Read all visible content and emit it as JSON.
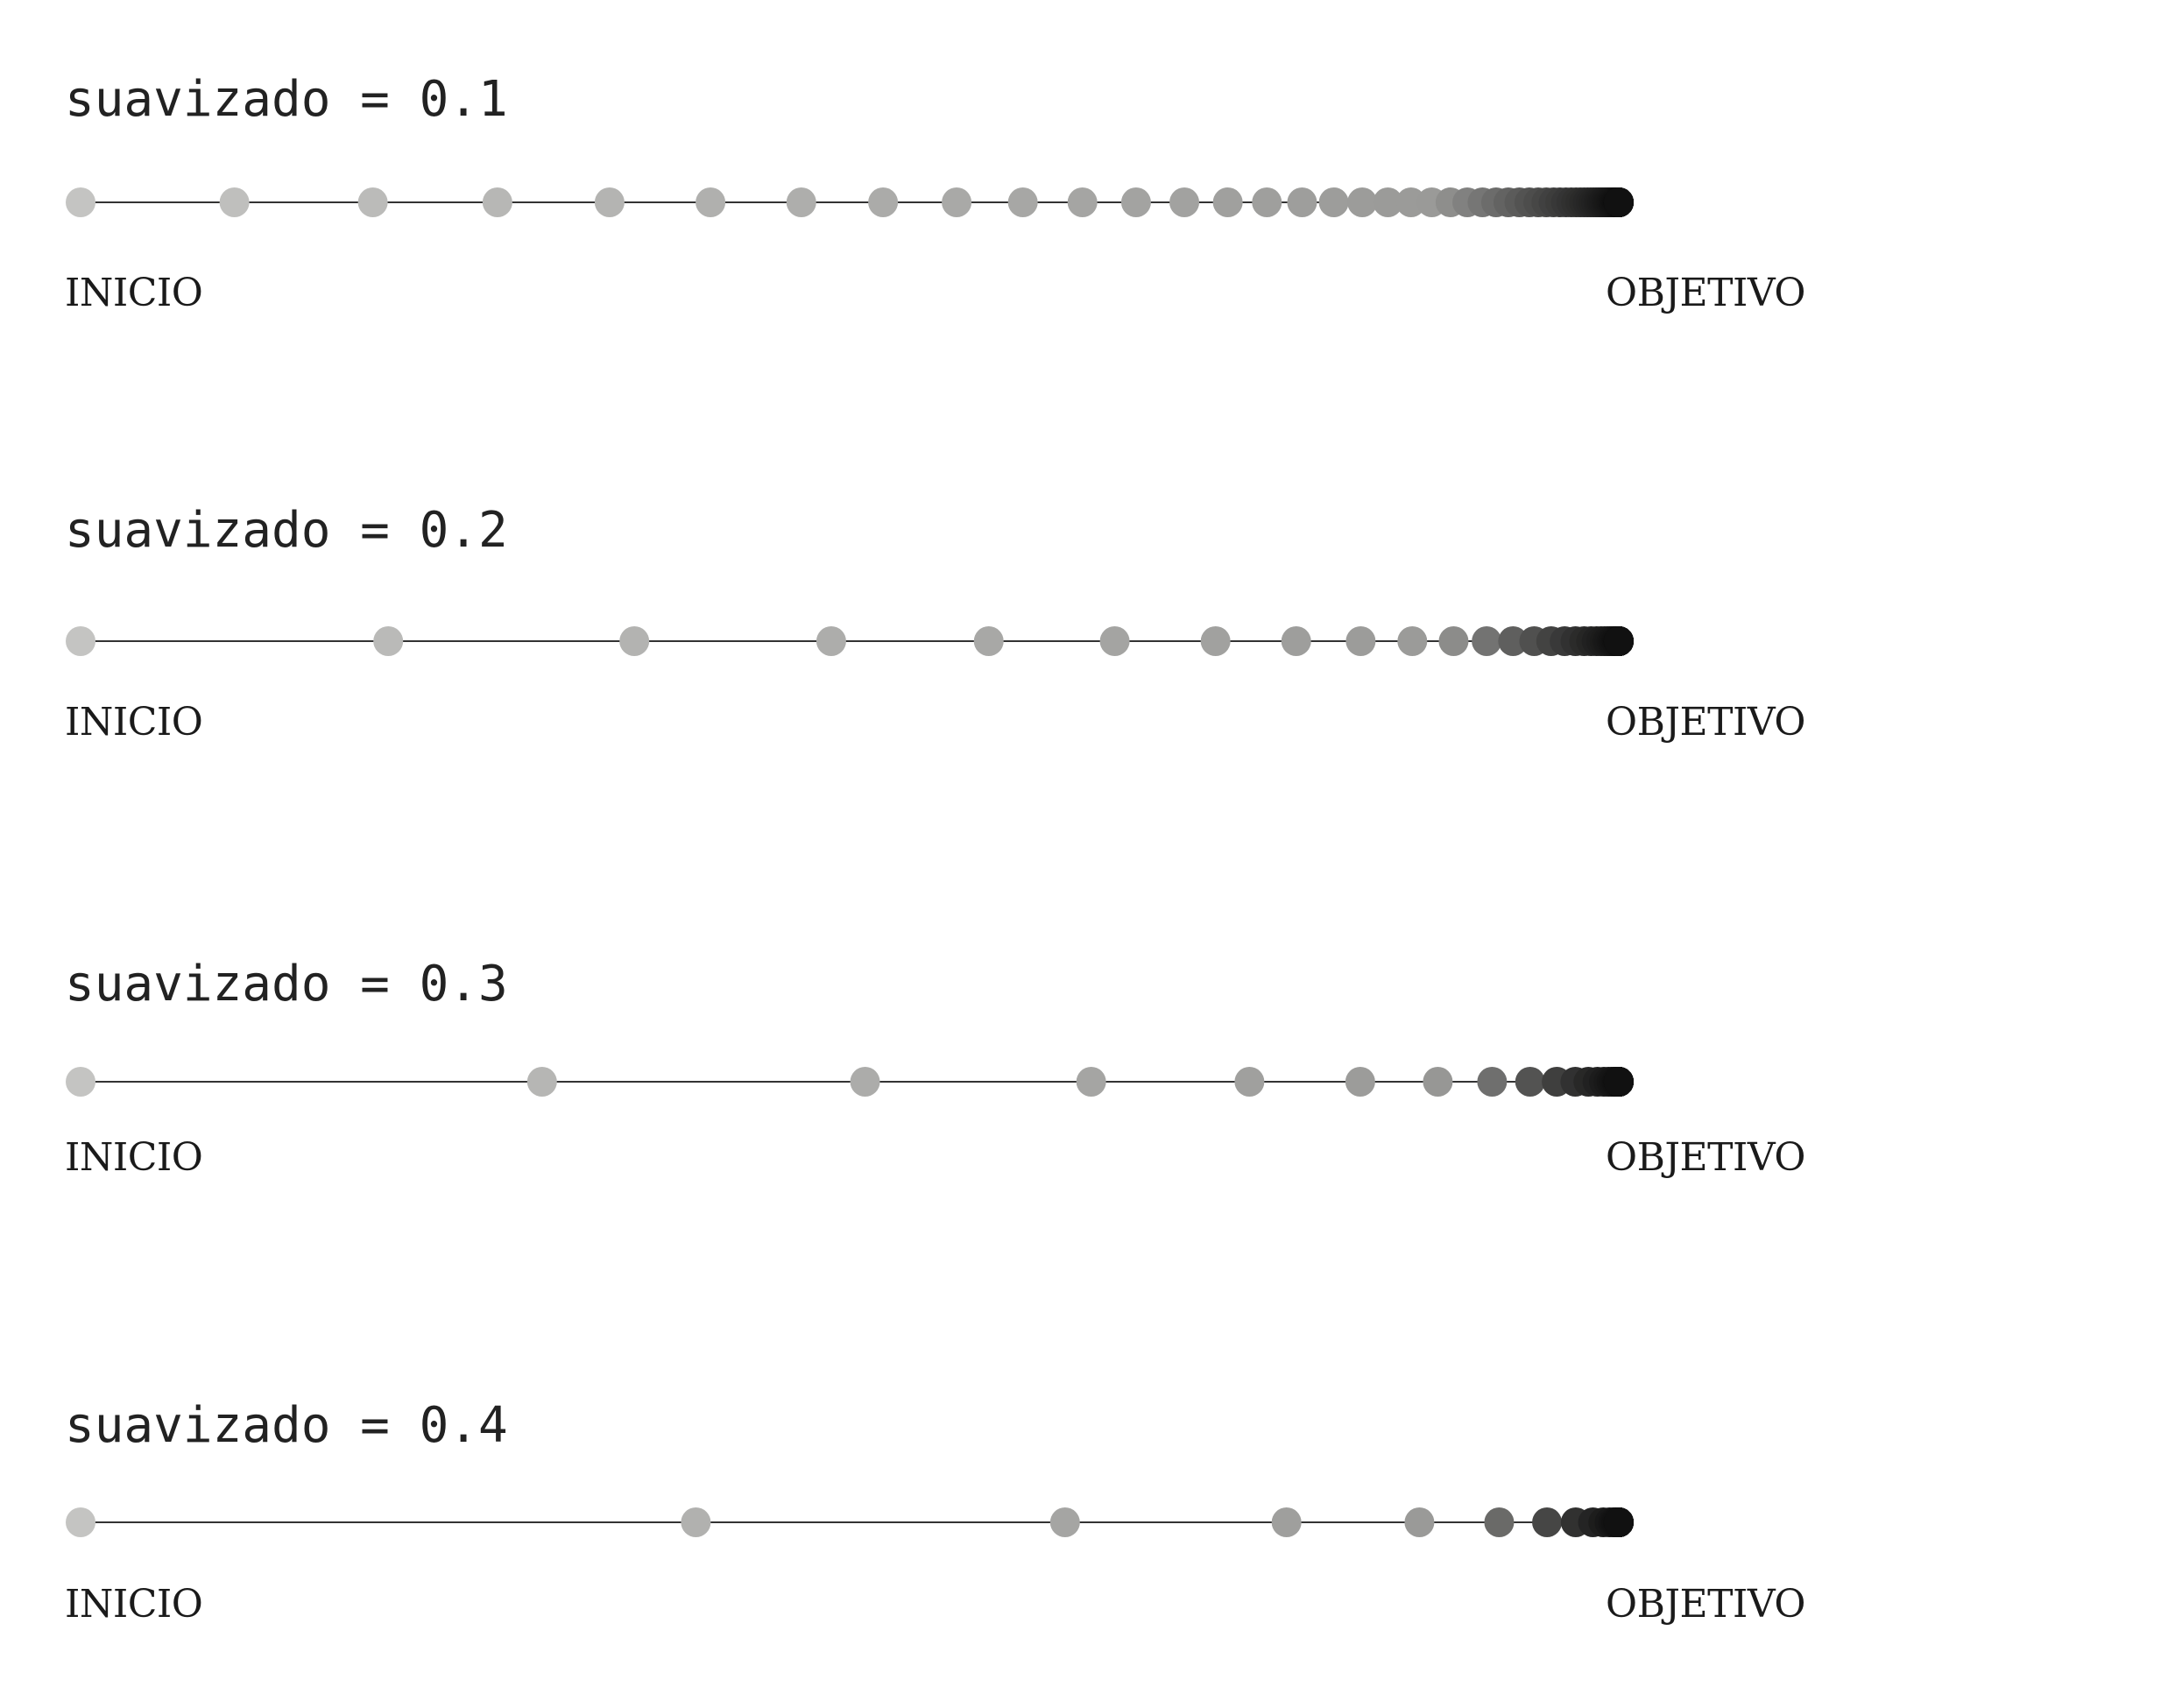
{
  "labels": {
    "start": "INICIO",
    "goal": "OBJETIVO"
  },
  "colors": {
    "line": "#333333",
    "dot_start": "#c4c4c2",
    "dot_mid": "#9a9a98",
    "dot_end": "#111111"
  },
  "panels": [
    {
      "title": "suavizado = 0.1",
      "smoothing": 0.1
    },
    {
      "title": "suavizado = 0.2",
      "smoothing": 0.2
    },
    {
      "title": "suavizado = 0.3",
      "smoothing": 0.3
    },
    {
      "title": "suavizado = 0.4",
      "smoothing": 0.4
    }
  ]
}
